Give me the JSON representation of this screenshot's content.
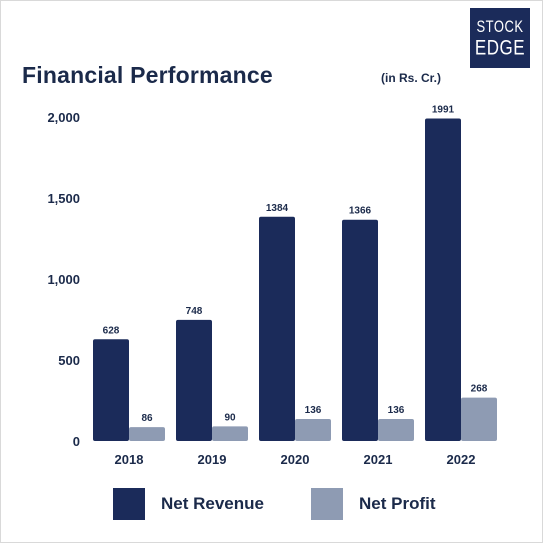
{
  "header": {
    "title": "Financial Performance",
    "units": "(in Rs. Cr.)",
    "logo_line1": "STOCK",
    "logo_line2": "EDGE"
  },
  "chart_data": {
    "type": "bar",
    "title": "Financial Performance",
    "subtitle": "(in Rs. Cr.)",
    "categories": [
      "2018",
      "2019",
      "2020",
      "2021",
      "2022"
    ],
    "series": [
      {
        "name": "Net Revenue",
        "values": [
          628,
          748,
          1384,
          1366,
          1991
        ],
        "color": "#1b2b5a"
      },
      {
        "name": "Net Profit",
        "values": [
          86,
          90,
          136,
          136,
          268
        ],
        "color": "#8e9bb3"
      }
    ],
    "ylim": [
      0,
      2000
    ],
    "yticks": [
      0,
      500,
      1000,
      1500,
      2000
    ],
    "ytick_labels": [
      "0",
      "500",
      "1,000",
      "1,500",
      "2,000"
    ],
    "grid": false,
    "legend": "bottom"
  },
  "legend": {
    "revenue_label": "Net Revenue",
    "profit_label": "Net Profit"
  },
  "colors": {
    "text": "#1b2a4a",
    "revenue": "#1b2b5a",
    "profit": "#8e9bb3"
  }
}
